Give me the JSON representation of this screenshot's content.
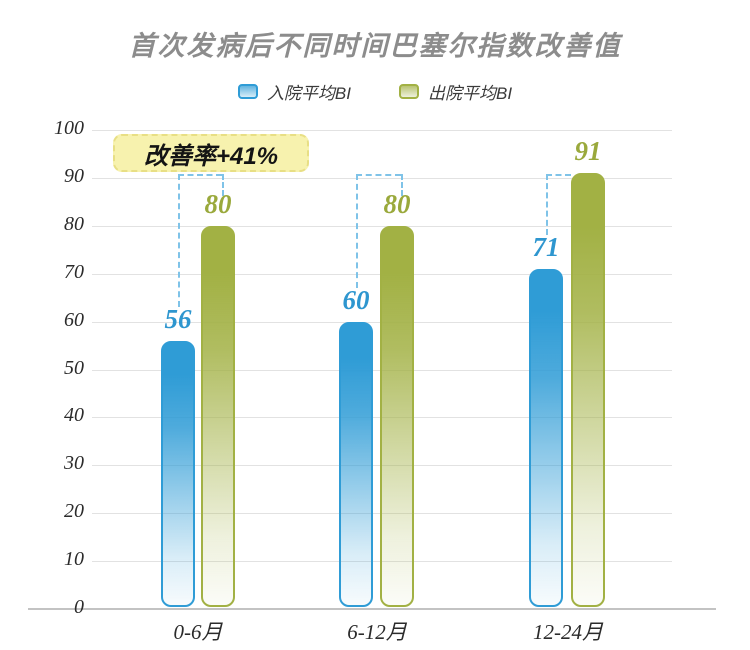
{
  "title": "首次发病后不同时间巴塞尔指数改善值",
  "annotation_text": "改善率+41%",
  "chart_data": {
    "type": "bar",
    "title": "首次发病后不同时间巴塞尔指数改善值",
    "categories": [
      "0-6月",
      "6-12月",
      "12-24月"
    ],
    "series": [
      {
        "name": "入院平均BI",
        "values": [
          56,
          60,
          71
        ],
        "color": "#2f9cd6",
        "label_color": "#2e96cf"
      },
      {
        "name": "出院平均BI",
        "values": [
          80,
          80,
          91
        ],
        "color": "#a2b144",
        "label_color": "#9aa93c"
      }
    ],
    "xlabel": "",
    "ylabel": "",
    "ylim": [
      0,
      100
    ],
    "ytick_step": 10,
    "yticks": [
      0,
      10,
      20,
      30,
      40,
      50,
      60,
      70,
      80,
      90,
      100
    ],
    "grid": true,
    "legend_position": "top",
    "annotation": {
      "text": "改善率+41%",
      "bg_color": "#f7f2ae",
      "border_color": "#e8df85",
      "text_color": "#141414"
    },
    "connector_color": "#7fc3e8",
    "title_color": "#8c8c8c",
    "gridline_color": "#e2e2e2",
    "axis_color": "#c3c3c3"
  }
}
